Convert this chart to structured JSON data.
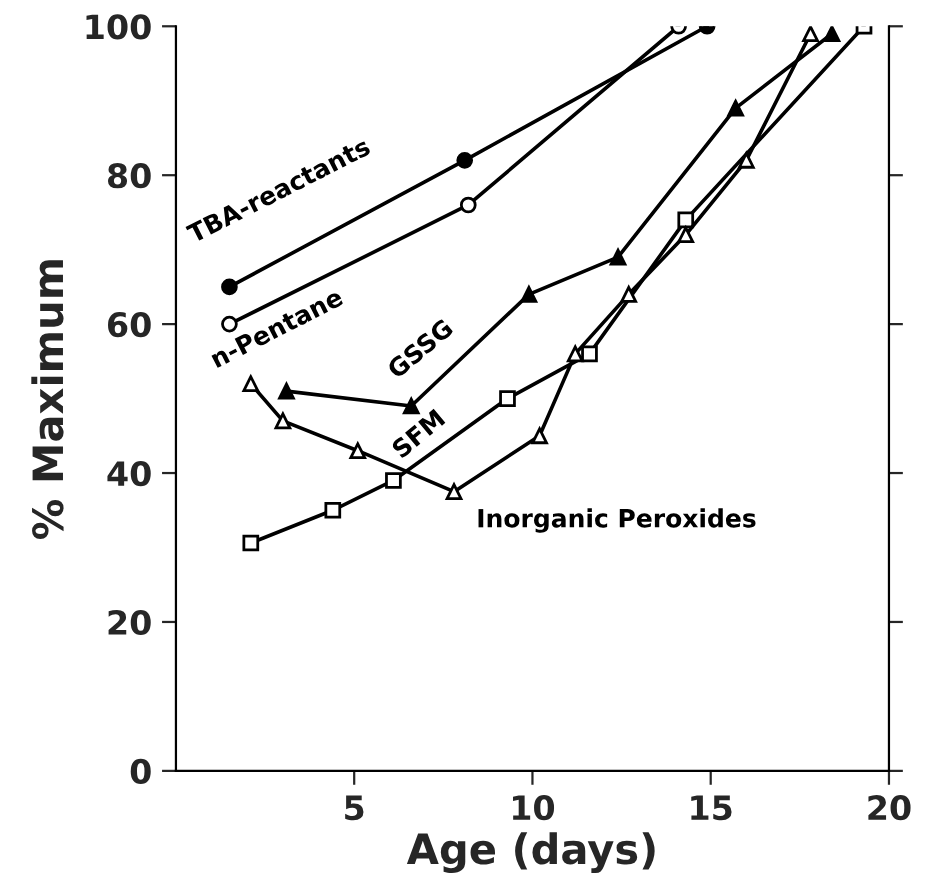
{
  "chart_data": {
    "type": "line",
    "xlabel": "Age (days)",
    "ylabel": "% Maximum",
    "xlim": [
      0,
      20
    ],
    "ylim": [
      0,
      100
    ],
    "xticks": [
      5,
      10,
      15,
      20
    ],
    "yticks": [
      0,
      20,
      40,
      60,
      80,
      100
    ],
    "grid": false,
    "legend": false,
    "series": [
      {
        "name": "TBA-reactants",
        "color": "#000000",
        "marker": "circle",
        "x": [
          1.5,
          8.1,
          14.9
        ],
        "values": [
          65,
          82,
          100
        ]
      },
      {
        "name": "n-Pentane",
        "color": "#000000",
        "marker": "circle",
        "x": [
          1.5,
          8.2,
          14.1
        ],
        "values": [
          60,
          76,
          100
        ]
      },
      {
        "name": "GSSG",
        "color": "#000000",
        "marker": "triangle",
        "x": [
          3.1,
          6.6,
          9.9,
          12.4,
          15.7,
          18.4
        ],
        "values": [
          51,
          49,
          64,
          69,
          89,
          99
        ]
      },
      {
        "name": "SFM",
        "color": "#000000",
        "marker": "square",
        "x": [
          2.1,
          4.4,
          6.1,
          9.3,
          11.6,
          14.3,
          19.3
        ],
        "values": [
          30.6,
          35,
          39,
          50,
          56,
          74,
          100
        ]
      },
      {
        "name": "Inorganic Peroxides",
        "color": "#000000",
        "marker": "triangle",
        "x": [
          2.1,
          3.0,
          5.1,
          7.8,
          10.2,
          11.2,
          12.7,
          14.3,
          16.0,
          17.8
        ],
        "values": [
          52,
          47,
          43,
          37.5,
          45,
          56,
          64,
          72,
          82,
          99
        ]
      }
    ]
  }
}
